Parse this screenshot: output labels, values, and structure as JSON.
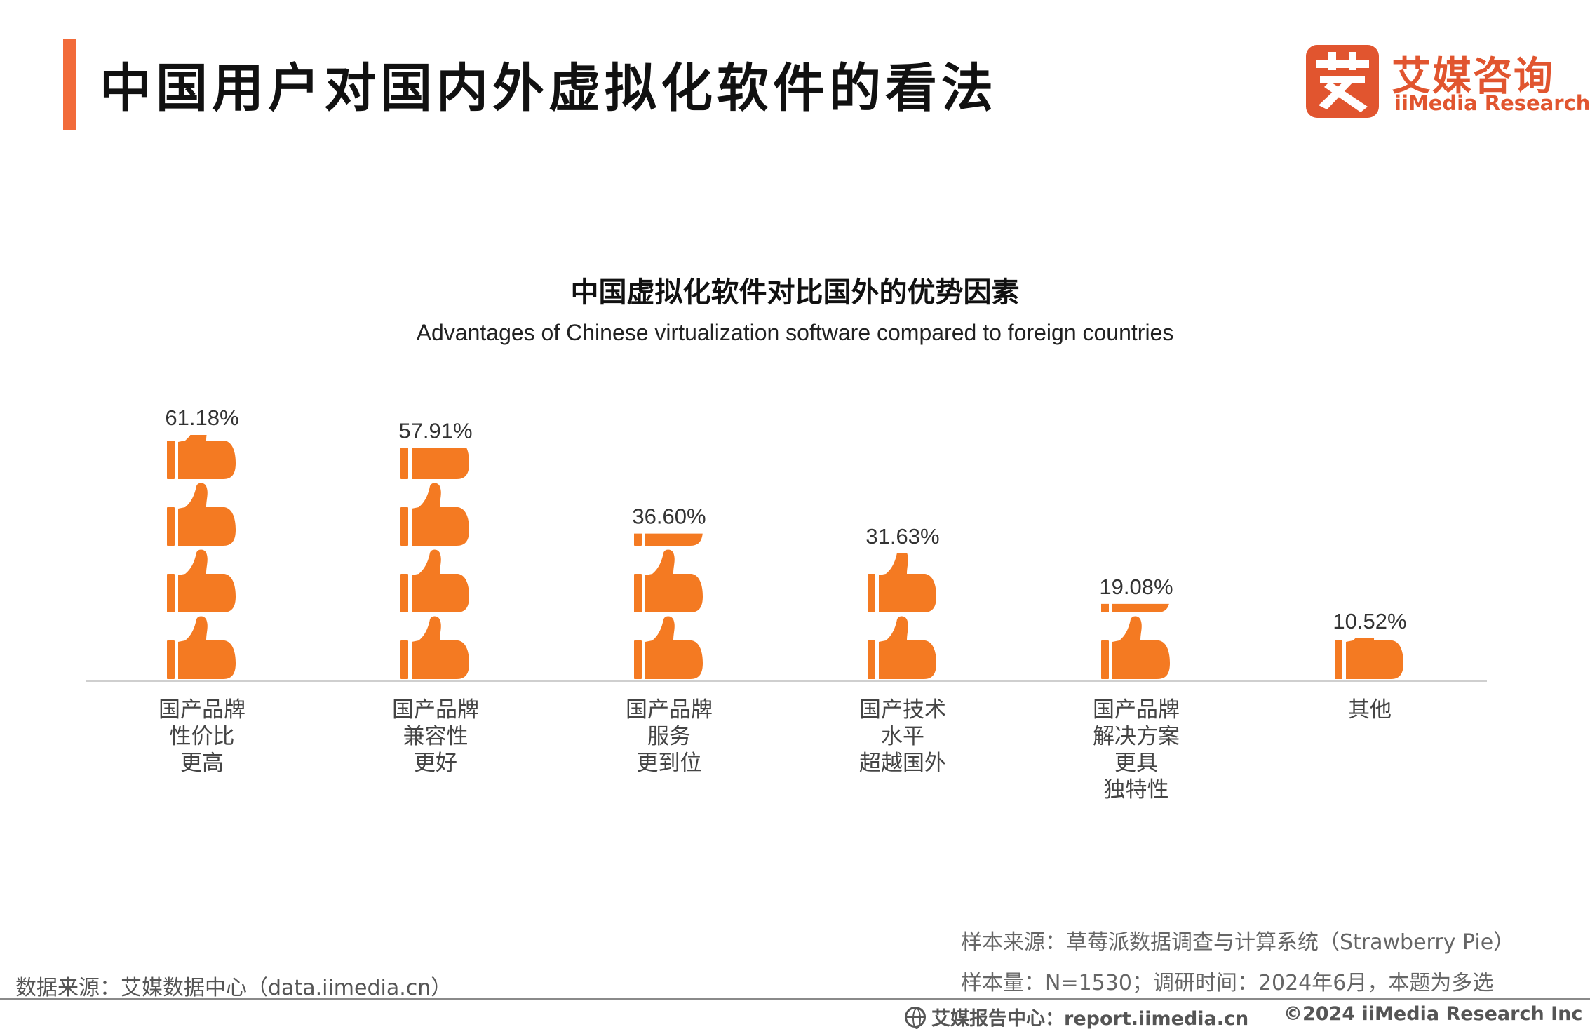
{
  "header": {
    "title": "中国用户对国内外虚拟化软件的看法"
  },
  "logo": {
    "mark": "艾",
    "name_cn": "艾媒咨询",
    "name_en": "iiMedia Research"
  },
  "colors": {
    "accent": "#f26b3a",
    "thumb": "#f47a22",
    "logo": "#e1552f"
  },
  "chart_data": {
    "type": "bar",
    "title": "中国虚拟化软件对比国外的优势因素",
    "subtitle": "Advantages of Chinese virtualization software compared to foreign countries",
    "icon": "thumbs-up-icon",
    "unit": "%",
    "ylim": [
      0,
      61.18
    ],
    "categories": [
      [
        "国产品牌",
        "性价比",
        "更高"
      ],
      [
        "国产品牌",
        "兼容性",
        "更好"
      ],
      [
        "国产品牌",
        "服务",
        "更到位"
      ],
      [
        "国产技术",
        "水平",
        "超越国外"
      ],
      [
        "国产品牌",
        "解决方案",
        "更具",
        "独特性"
      ],
      [
        "其他"
      ]
    ],
    "values": [
      61.18,
      57.91,
      36.6,
      31.63,
      19.08,
      10.52
    ],
    "labels": [
      "61.18%",
      "57.91%",
      "36.60%",
      "31.63%",
      "19.08%",
      "10.52%"
    ]
  },
  "footer": {
    "data_source": "数据来源：艾媒数据中心（data.iimedia.cn）",
    "sample_source": "样本来源：草莓派数据调查与计算系统（Strawberry Pie）",
    "sample_size": "样本量：N=1530；调研时间：2024年6月，本题为多选",
    "report_center": "艾媒报告中心：report.iimedia.cn",
    "copyright": "©2024  iiMedia Research  Inc"
  }
}
